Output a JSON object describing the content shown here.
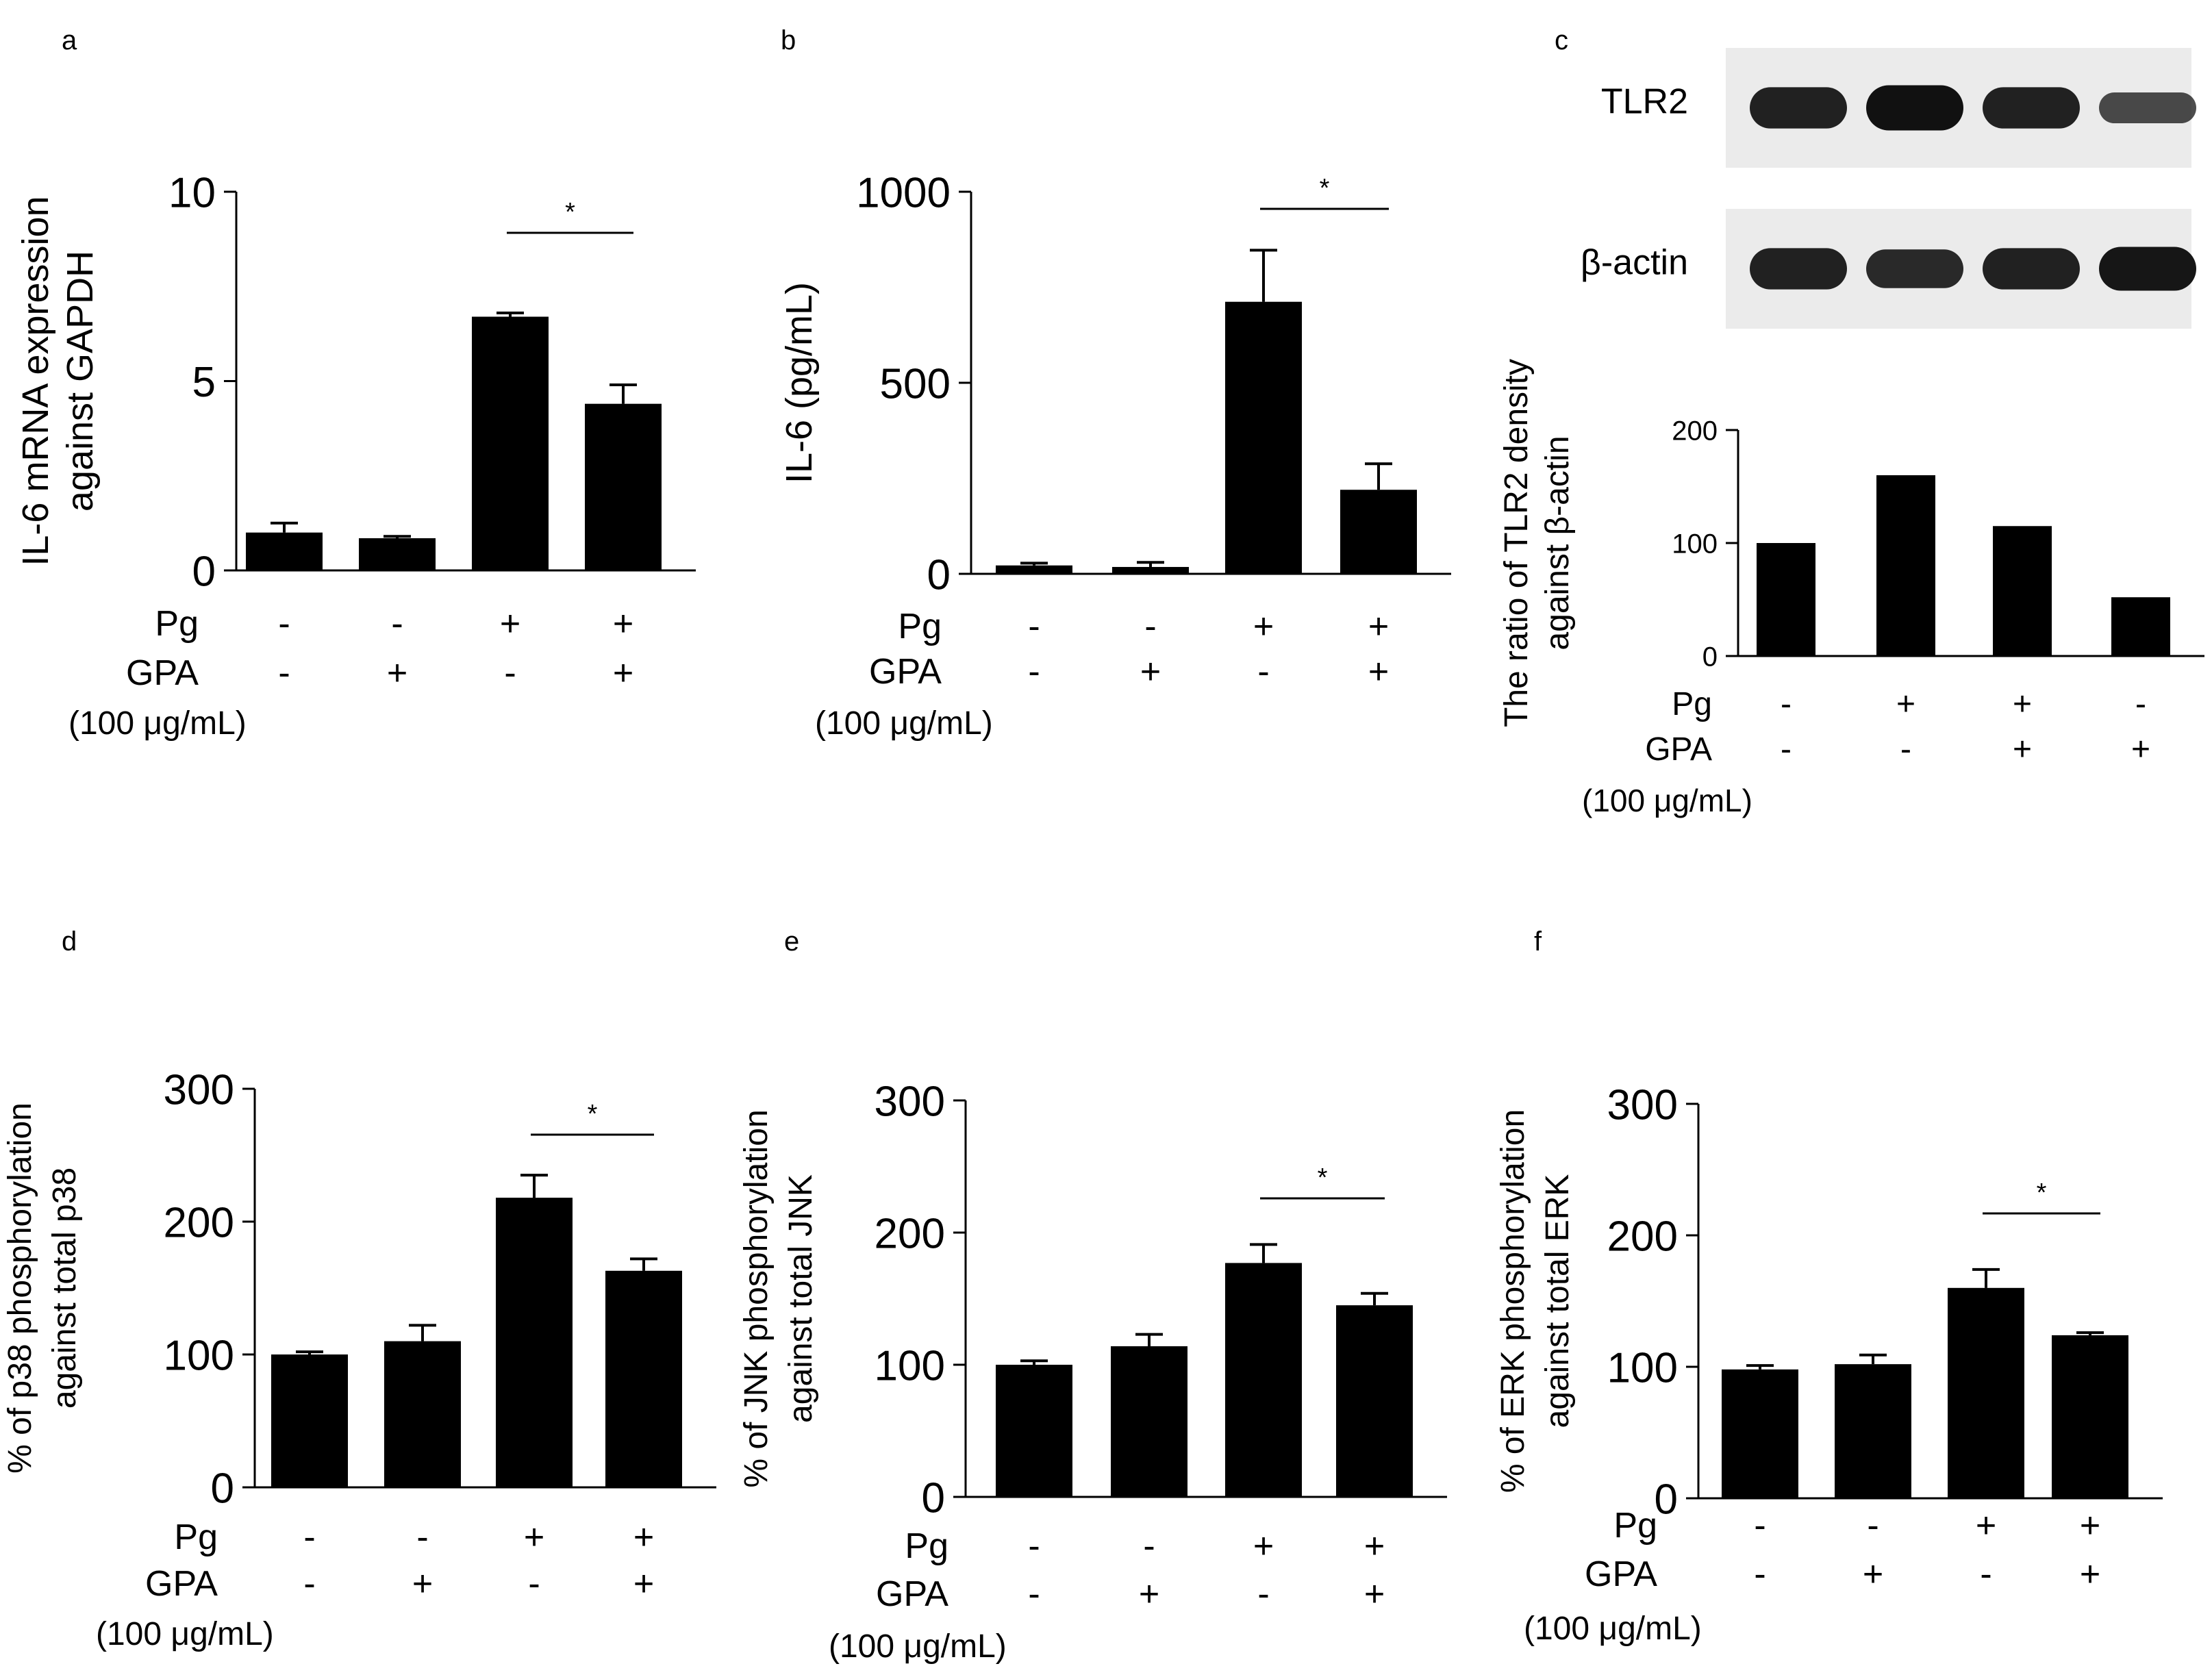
{
  "chart_data": [
    {
      "type": "bar",
      "panel": "a",
      "ylabel": [
        "IL-6 mRNA expression",
        "against GAPDH"
      ],
      "ylim": [
        0,
        10
      ],
      "yticks": [
        0,
        5,
        10
      ],
      "values": [
        1.0,
        0.85,
        6.7,
        4.4
      ],
      "errors": [
        0.25,
        0.05,
        0.1,
        0.5
      ],
      "rows": [
        {
          "label": "Pg",
          "signs": [
            "-",
            "-",
            "+",
            "+"
          ]
        },
        {
          "label": "GPA",
          "signs": [
            "-",
            "+",
            "-",
            "+"
          ]
        }
      ],
      "conc": "(100 μg/mL)",
      "significance": {
        "from": 2,
        "to": 3,
        "label": "*"
      }
    },
    {
      "type": "bar",
      "panel": "b",
      "ylabel": [
        "IL-6  (pg/mL)"
      ],
      "ylim": [
        0,
        1000
      ],
      "yticks": [
        0,
        500,
        1000
      ],
      "values": [
        22,
        18,
        712,
        220
      ],
      "errors": [
        6,
        12,
        135,
        68
      ],
      "rows": [
        {
          "label": "Pg",
          "signs": [
            "-",
            "-",
            "+",
            "+"
          ]
        },
        {
          "label": "GPA",
          "signs": [
            "-",
            "+",
            "-",
            "+"
          ]
        }
      ],
      "conc": "(100 μg/mL)",
      "significance": {
        "from": 2,
        "to": 3,
        "label": "*"
      }
    },
    {
      "type": "bar",
      "panel": "c",
      "ylabel": [
        "The ratio of TLR2 density",
        "against β-actin"
      ],
      "ylim": [
        0,
        200
      ],
      "yticks": [
        0,
        100,
        200
      ],
      "values": [
        100,
        160,
        115,
        52
      ],
      "errors": [
        0,
        0,
        0,
        0
      ],
      "rows": [
        {
          "label": "Pg",
          "signs": [
            "-",
            "+",
            "+",
            "-"
          ]
        },
        {
          "label": "GPA",
          "signs": [
            "-",
            "-",
            "+",
            "+"
          ]
        }
      ],
      "conc": "(100 μg/mL)",
      "significance": null,
      "blot": {
        "bands": [
          {
            "label": "TLR2",
            "intensity": [
              0.85,
              1.0,
              0.85,
              0.45
            ]
          },
          {
            "label": "β-actin",
            "intensity": [
              0.85,
              0.75,
              0.85,
              0.95
            ]
          }
        ]
      }
    },
    {
      "type": "bar",
      "panel": "d",
      "ylabel": [
        "% of p38 phosphorylation",
        "against total p38"
      ],
      "ylim": [
        0,
        300
      ],
      "yticks": [
        0,
        100,
        200,
        300
      ],
      "values": [
        100,
        110,
        218,
        163
      ],
      "errors": [
        2,
        12,
        17,
        9
      ],
      "rows": [
        {
          "label": "Pg",
          "signs": [
            "-",
            "-",
            "+",
            "+"
          ]
        },
        {
          "label": "GPA",
          "signs": [
            "-",
            "+",
            "-",
            "+"
          ]
        }
      ],
      "conc": "(100 μg/mL)",
      "significance": {
        "from": 2,
        "to": 3,
        "label": "*"
      }
    },
    {
      "type": "bar",
      "panel": "e",
      "ylabel": [
        "% of JNK phosphorylation",
        "against total JNK"
      ],
      "ylim": [
        0,
        300
      ],
      "yticks": [
        0,
        100,
        200,
        300
      ],
      "values": [
        100,
        114,
        177,
        145
      ],
      "errors": [
        3,
        9,
        14,
        9
      ],
      "rows": [
        {
          "label": "Pg",
          "signs": [
            "-",
            "-",
            "+",
            "+"
          ]
        },
        {
          "label": "GPA",
          "signs": [
            "-",
            "+",
            "-",
            "+"
          ]
        }
      ],
      "conc": "(100 μg/mL)",
      "significance": {
        "from": 2,
        "to": 3,
        "label": "*"
      }
    },
    {
      "type": "bar",
      "panel": "f",
      "ylabel": [
        "% of ERK phosphorylation",
        "against total ERK"
      ],
      "ylim": [
        0,
        300
      ],
      "yticks": [
        0,
        100,
        200,
        300
      ],
      "values": [
        98,
        102,
        160,
        124
      ],
      "errors": [
        3,
        7,
        14,
        2
      ],
      "rows": [
        {
          "label": "Pg",
          "signs": [
            "-",
            "-",
            "+",
            "+"
          ]
        },
        {
          "label": "GPA",
          "signs": [
            "-",
            "+",
            "-",
            "+"
          ]
        }
      ],
      "conc": "(100 μg/mL)",
      "significance": {
        "from": 2,
        "to": 3,
        "label": "*"
      }
    }
  ],
  "colors": {
    "bar": "#000000",
    "axis": "#000000",
    "background": "#ffffff"
  }
}
